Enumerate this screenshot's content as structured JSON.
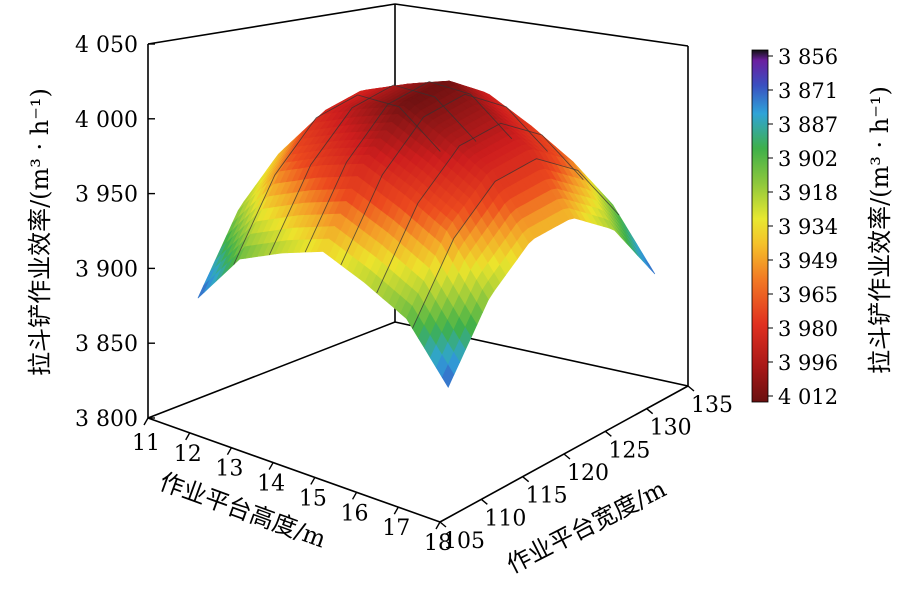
{
  "chart_data": {
    "type": "surface3d",
    "title": "",
    "x": {
      "label": "作业平台高度/m",
      "range": [
        11,
        18
      ],
      "ticks": [
        "11",
        "12",
        "13",
        "14",
        "15",
        "16",
        "17",
        "18"
      ]
    },
    "y": {
      "label": "作业平台宽度/m",
      "range": [
        105,
        135
      ],
      "ticks": [
        "105",
        "110",
        "115",
        "120",
        "125",
        "130",
        "135"
      ]
    },
    "z": {
      "label": "拉斗铲作业效率/(m³ · h⁻¹)",
      "range": [
        3800,
        4050
      ],
      "ticks": [
        "3 800",
        "3 850",
        "3 900",
        "3 950",
        "4 000",
        "4 050"
      ]
    },
    "surface": {
      "x_grid": [
        11.8,
        12.8,
        13.8,
        14.8,
        15.8,
        16.8,
        17.8
      ],
      "y_grid": [
        107,
        112,
        117,
        122,
        127,
        132
      ],
      "z": [
        [
          3882,
          3927,
          3950,
          3950,
          3927,
          3882
        ],
        [
          3918,
          3963,
          3986,
          3986,
          3963,
          3918
        ],
        [
          3932,
          3977,
          4000,
          4000,
          3977,
          3932
        ],
        [
          3943,
          3988,
          4012,
          4012,
          3988,
          3943
        ],
        [
          3932,
          3977,
          4000,
          4000,
          3977,
          3932
        ],
        [
          3918,
          3963,
          3986,
          3986,
          3963,
          3918
        ],
        [
          3882,
          3927,
          3950,
          3950,
          3927,
          3882
        ]
      ]
    },
    "colorbar": {
      "label": "拉斗铲作业效率/(m³ · h⁻¹)",
      "ticks": [
        "3 856",
        "3 871",
        "3 887",
        "3 902",
        "3 918",
        "3 934",
        "3 949",
        "3 965",
        "3 980",
        "3 996",
        "4 012"
      ],
      "colors": [
        "#1a1a1a",
        "#7a1fa2",
        "#3a4fc0",
        "#2fa3d8",
        "#4fb847",
        "#a8cf3a",
        "#f0e52a",
        "#f8a82a",
        "#ec4a1e",
        "#d42020",
        "#6a1010"
      ]
    },
    "grid": false,
    "legend": "right"
  }
}
